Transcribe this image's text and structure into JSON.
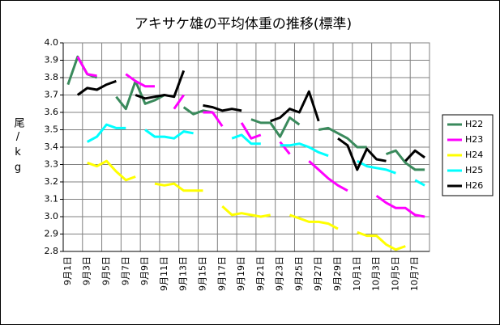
{
  "chart_data": {
    "type": "line",
    "title": "アキサケ雄の平均体重の推移(標準)",
    "y_label": "尾/kg",
    "categories": [
      "9月1日",
      null,
      "9月3日",
      null,
      "9月5日",
      null,
      "9月7日",
      null,
      "9月9日",
      null,
      "9月11日",
      null,
      "9月13日",
      null,
      "9月15日",
      null,
      "9月17日",
      null,
      "9月19日",
      null,
      "9月21日",
      null,
      "9月23日",
      null,
      "9月25日",
      null,
      "9月27日",
      null,
      "9月29日",
      null,
      "10月1日",
      null,
      "10月3日",
      null,
      "10月5日",
      null,
      "10月7日",
      null
    ],
    "series": [
      {
        "name": "H22",
        "color": "#3a8a5c",
        "values": [
          3.76,
          3.92,
          3.82,
          3.8,
          null,
          3.69,
          3.62,
          3.78,
          3.65,
          3.67,
          3.7,
          null,
          3.63,
          3.59,
          3.61,
          3.6,
          null,
          null,
          null,
          3.56,
          3.54,
          3.54,
          3.46,
          3.57,
          3.53,
          null,
          3.5,
          3.51,
          3.48,
          3.45,
          3.4,
          3.4,
          null,
          3.36,
          3.38,
          3.31,
          3.27,
          3.27
        ]
      },
      {
        "name": "H23",
        "color": "#ff00ff",
        "values": [
          null,
          3.92,
          3.82,
          3.81,
          null,
          null,
          3.82,
          3.78,
          3.75,
          3.75,
          null,
          3.62,
          3.7,
          null,
          3.6,
          3.6,
          3.52,
          null,
          3.54,
          3.45,
          3.47,
          null,
          3.43,
          3.36,
          null,
          3.32,
          3.27,
          3.22,
          3.18,
          3.15,
          null,
          null,
          3.12,
          3.08,
          3.05,
          3.05,
          3.01,
          3.0
        ]
      },
      {
        "name": "H24",
        "color": "#ffff00",
        "values": [
          null,
          null,
          3.31,
          3.29,
          3.32,
          3.26,
          3.21,
          3.23,
          null,
          3.19,
          3.18,
          3.19,
          3.15,
          3.15,
          3.15,
          null,
          3.06,
          3.01,
          3.02,
          3.01,
          3.0,
          3.01,
          null,
          3.01,
          2.99,
          2.97,
          2.97,
          2.96,
          2.93,
          null,
          2.91,
          2.89,
          2.89,
          2.84,
          2.81,
          2.83,
          null,
          null
        ]
      },
      {
        "name": "H25",
        "color": "#00ffff",
        "values": [
          null,
          null,
          3.43,
          3.46,
          3.53,
          3.51,
          3.51,
          null,
          3.5,
          3.46,
          3.46,
          3.45,
          3.49,
          3.48,
          null,
          null,
          null,
          3.45,
          3.47,
          3.42,
          3.42,
          null,
          3.41,
          3.41,
          3.42,
          3.4,
          3.37,
          3.35,
          null,
          null,
          3.32,
          3.29,
          3.28,
          3.27,
          3.25,
          null,
          3.21,
          3.18
        ]
      },
      {
        "name": "H26",
        "color": "#000000",
        "values": [
          null,
          3.7,
          3.74,
          3.73,
          3.76,
          3.78,
          null,
          3.7,
          3.68,
          3.69,
          3.7,
          3.69,
          3.84,
          null,
          3.64,
          3.63,
          3.61,
          3.62,
          3.61,
          null,
          null,
          3.55,
          3.57,
          3.62,
          3.6,
          3.72,
          3.55,
          null,
          3.45,
          3.41,
          3.27,
          3.39,
          3.33,
          3.32,
          null,
          3.32,
          3.38,
          3.34
        ]
      }
    ],
    "ylim": [
      2.8,
      4.0
    ],
    "yticks": [
      2.8,
      2.9,
      {
        "value": 3,
        "label": "3.0"
      },
      3.1,
      3.2,
      3.3,
      3.4,
      3.5,
      3.6,
      3.7,
      3.8,
      3.9,
      {
        "value": 4,
        "label": "4.0"
      }
    ],
    "grid": true,
    "legend": "right"
  }
}
